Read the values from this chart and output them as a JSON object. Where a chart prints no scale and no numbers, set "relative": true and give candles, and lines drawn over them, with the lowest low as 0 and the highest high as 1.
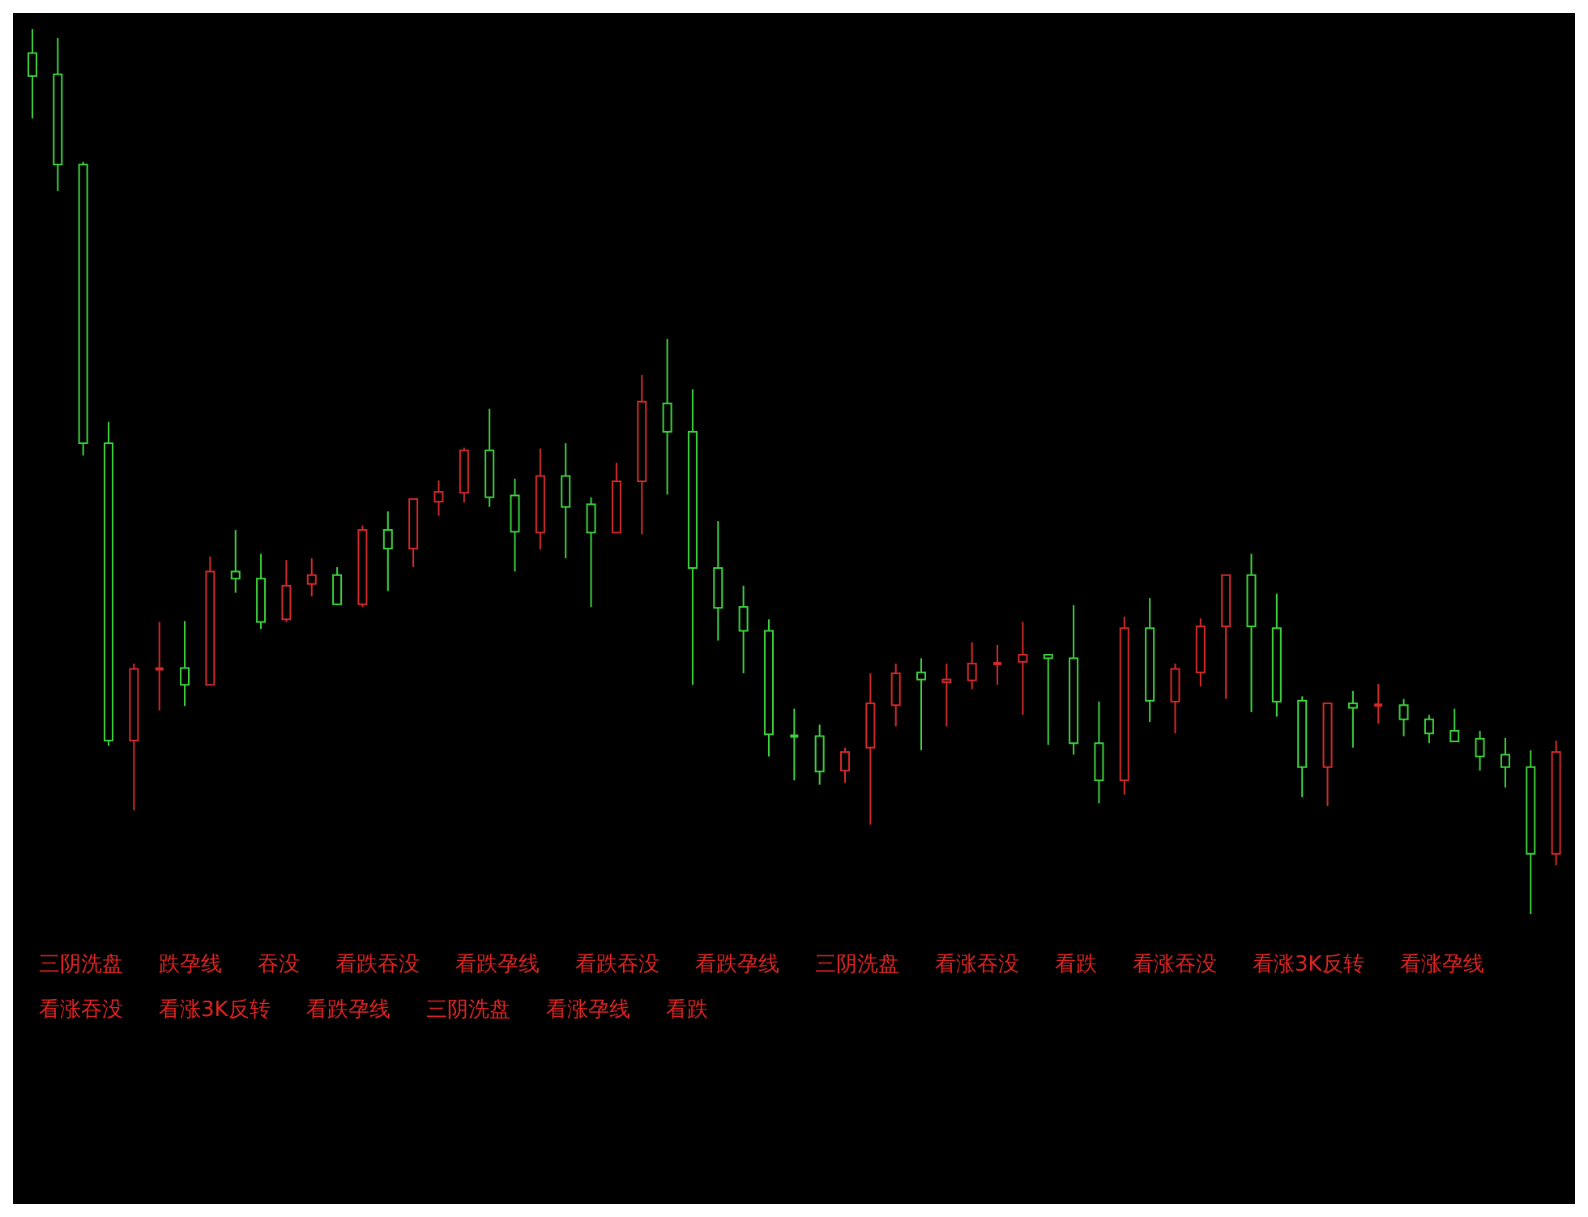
{
  "chart_data": {
    "type": "candlestick",
    "relative": true,
    "categories": [
      null,
      null,
      null,
      null,
      null,
      null,
      null,
      null,
      null,
      null,
      null,
      null,
      null,
      null,
      null,
      null,
      null,
      null,
      null,
      null,
      null,
      null,
      null,
      null,
      null,
      null,
      null,
      null,
      null,
      null,
      null,
      null,
      null,
      null,
      null,
      null,
      null,
      null,
      null,
      null,
      null,
      null,
      null,
      null,
      null,
      null,
      null,
      null,
      null,
      null,
      null,
      null,
      null,
      null,
      null,
      null,
      null,
      null,
      null,
      null,
      null
    ],
    "ohlc": [
      [
        0.973,
        1,
        0.899,
        0.947
      ],
      [
        0.949,
        0.99,
        0.817,
        0.847
      ],
      [
        0.847,
        0.85,
        0.518,
        0.532
      ],
      [
        0.532,
        0.556,
        0.19,
        0.196
      ],
      [
        0.196,
        0.283,
        0.117,
        0.277
      ],
      [
        0.277,
        0.33,
        0.23,
        0.277
      ],
      [
        0.278,
        0.331,
        0.235,
        0.259
      ],
      [
        0.259,
        0.404,
        0.259,
        0.387
      ],
      [
        0.387,
        0.434,
        0.363,
        0.379
      ],
      [
        0.379,
        0.407,
        0.322,
        0.33
      ],
      [
        0.333,
        0.4,
        0.33,
        0.371
      ],
      [
        0.373,
        0.402,
        0.359,
        0.383
      ],
      [
        0.383,
        0.392,
        0.349,
        0.35
      ],
      [
        0.35,
        0.439,
        0.347,
        0.434
      ],
      [
        0.434,
        0.455,
        0.365,
        0.413
      ],
      [
        0.413,
        0.469,
        0.392,
        0.469
      ],
      [
        0.466,
        0.49,
        0.45,
        0.477
      ],
      [
        0.476,
        0.527,
        0.465,
        0.524
      ],
      [
        0.524,
        0.571,
        0.46,
        0.471
      ],
      [
        0.473,
        0.492,
        0.387,
        0.432
      ],
      [
        0.431,
        0.526,
        0.412,
        0.495
      ],
      [
        0.495,
        0.532,
        0.402,
        0.46
      ],
      [
        0.463,
        0.471,
        0.347,
        0.431
      ],
      [
        0.431,
        0.51,
        0.431,
        0.489
      ],
      [
        0.489,
        0.609,
        0.429,
        0.579
      ],
      [
        0.577,
        0.65,
        0.474,
        0.545
      ],
      [
        0.545,
        0.593,
        0.259,
        0.391
      ],
      [
        0.391,
        0.444,
        0.309,
        0.346
      ],
      [
        0.347,
        0.371,
        0.272,
        0.32
      ],
      [
        0.32,
        0.333,
        0.178,
        0.203
      ],
      [
        0.201,
        0.232,
        0.151,
        0.201
      ],
      [
        0.201,
        0.214,
        0.146,
        0.161
      ],
      [
        0.162,
        0.188,
        0.148,
        0.183
      ],
      [
        0.188,
        0.272,
        0.101,
        0.238
      ],
      [
        0.236,
        0.283,
        0.212,
        0.272
      ],
      [
        0.273,
        0.289,
        0.185,
        0.265
      ],
      [
        0.262,
        0.283,
        0.212,
        0.265
      ],
      [
        0.264,
        0.307,
        0.254,
        0.283
      ],
      [
        0.283,
        0.304,
        0.259,
        0.283
      ],
      [
        0.285,
        0.33,
        0.225,
        0.293
      ],
      [
        0.293,
        0.293,
        0.191,
        0.289
      ],
      [
        0.289,
        0.349,
        0.18,
        0.193
      ],
      [
        0.193,
        0.24,
        0.125,
        0.151
      ],
      [
        0.151,
        0.336,
        0.135,
        0.323
      ],
      [
        0.323,
        0.357,
        0.217,
        0.241
      ],
      [
        0.24,
        0.283,
        0.204,
        0.277
      ],
      [
        0.273,
        0.334,
        0.257,
        0.325
      ],
      [
        0.325,
        0.383,
        0.243,
        0.383
      ],
      [
        0.383,
        0.407,
        0.228,
        0.325
      ],
      [
        0.323,
        0.362,
        0.223,
        0.24
      ],
      [
        0.241,
        0.246,
        0.132,
        0.166
      ],
      [
        0.166,
        0.238,
        0.122,
        0.238
      ],
      [
        0.238,
        0.252,
        0.188,
        0.233
      ],
      [
        0.236,
        0.26,
        0.215,
        0.236
      ],
      [
        0.236,
        0.243,
        0.201,
        0.22
      ],
      [
        0.22,
        0.225,
        0.193,
        0.204
      ],
      [
        0.207,
        0.232,
        0.195,
        0.195
      ],
      [
        0.198,
        0.207,
        0.162,
        0.178
      ],
      [
        0.18,
        0.199,
        0.143,
        0.166
      ],
      [
        0.166,
        0.185,
        0,
        0.068
      ],
      [
        0.068,
        0.196,
        0.055,
        0.183
      ]
    ],
    "colors": [
      "#3cd23c",
      "#3cd23c",
      "#3cd23c",
      "#3cd23c",
      "#d42a2a",
      "#d42a2a",
      "#3cd23c",
      "#d42a2a",
      "#3cd23c",
      "#3cd23c",
      "#d42a2a",
      "#d42a2a",
      "#3cd23c",
      "#d42a2a",
      "#3cd23c",
      "#d42a2a",
      "#d42a2a",
      "#d42a2a",
      "#3cd23c",
      "#3cd23c",
      "#d42a2a",
      "#3cd23c",
      "#3cd23c",
      "#d42a2a",
      "#d42a2a",
      "#3cd23c",
      "#3cd23c",
      "#3cd23c",
      "#3cd23c",
      "#3cd23c",
      "#3cd23c",
      "#3cd23c",
      "#d42a2a",
      "#d42a2a",
      "#d42a2a",
      "#3cd23c",
      "#d42a2a",
      "#d42a2a",
      "#d42a2a",
      "#d42a2a",
      "#3cd23c",
      "#3cd23c",
      "#3cd23c",
      "#d42a2a",
      "#3cd23c",
      "#d42a2a",
      "#d42a2a",
      "#d42a2a",
      "#3cd23c",
      "#3cd23c",
      "#3cd23c",
      "#d42a2a",
      "#3cd23c",
      "#d42a2a",
      "#3cd23c",
      "#3cd23c",
      "#3cd23c",
      "#3cd23c",
      "#3cd23c",
      "#3cd23c",
      "#d42a2a"
    ],
    "annotations": [
      "三阴洗盘",
      "跌孕线",
      "吞没",
      "看跌吞没",
      "看跌孕线",
      "看跌吞没",
      "看跌孕线",
      "三阴洗盘",
      "看涨吞没",
      "看跌",
      "看涨吞没",
      "看涨3K反转",
      "看涨孕线",
      "看涨吞没",
      "看涨3K反转",
      "看跌孕线",
      "三阴洗盘",
      "看涨孕线",
      "看跌"
    ]
  }
}
